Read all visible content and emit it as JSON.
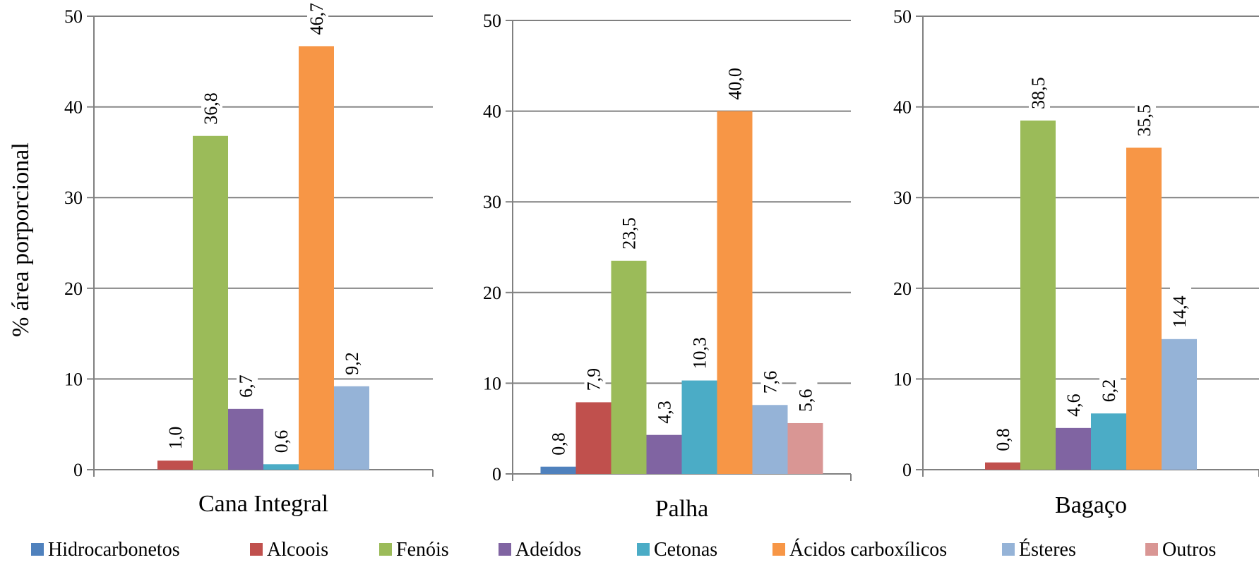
{
  "chart_data": {
    "type": "bar",
    "ylabel": "% área porporcional",
    "ylim": [
      0,
      50
    ],
    "yticks": [
      0,
      10,
      20,
      30,
      40,
      50
    ],
    "grid": true,
    "legend_position": "bottom",
    "series": [
      {
        "name": "Hidrocarbonetos",
        "color": "#4F81BD"
      },
      {
        "name": "Alcoois",
        "color": "#C0504D"
      },
      {
        "name": "Fenóis",
        "color": "#9BBB59"
      },
      {
        "name": "Adeídos",
        "color": "#8064A2"
      },
      {
        "name": "Cetonas",
        "color": "#4BACC6"
      },
      {
        "name": "Ácidos carboxílicos",
        "color": "#F79646"
      },
      {
        "name": "Ésteres",
        "color": "#95B3D7"
      },
      {
        "name": "Outros",
        "color": "#D99694"
      }
    ],
    "panels": [
      {
        "category": "Cana Integral",
        "values": [
          null,
          1.0,
          36.8,
          6.7,
          0.6,
          46.7,
          9.2,
          null
        ],
        "labels": [
          null,
          "1,0",
          "36,8",
          "6,7",
          "0,6",
          "46,7",
          "9,2",
          null
        ]
      },
      {
        "category": "Palha",
        "values": [
          0.8,
          7.9,
          23.5,
          4.3,
          10.3,
          40.0,
          7.6,
          5.6
        ],
        "labels": [
          "0,8",
          "7,9",
          "23,5",
          "4,3",
          "10,3",
          "40,0",
          "7,6",
          "5,6"
        ]
      },
      {
        "category": "Bagaço",
        "values": [
          null,
          0.8,
          38.5,
          4.6,
          6.2,
          35.5,
          14.4,
          null
        ],
        "labels": [
          null,
          "0,8",
          "38,5",
          "4,6",
          "6,2",
          "35,5",
          "14,4",
          null
        ]
      }
    ]
  }
}
